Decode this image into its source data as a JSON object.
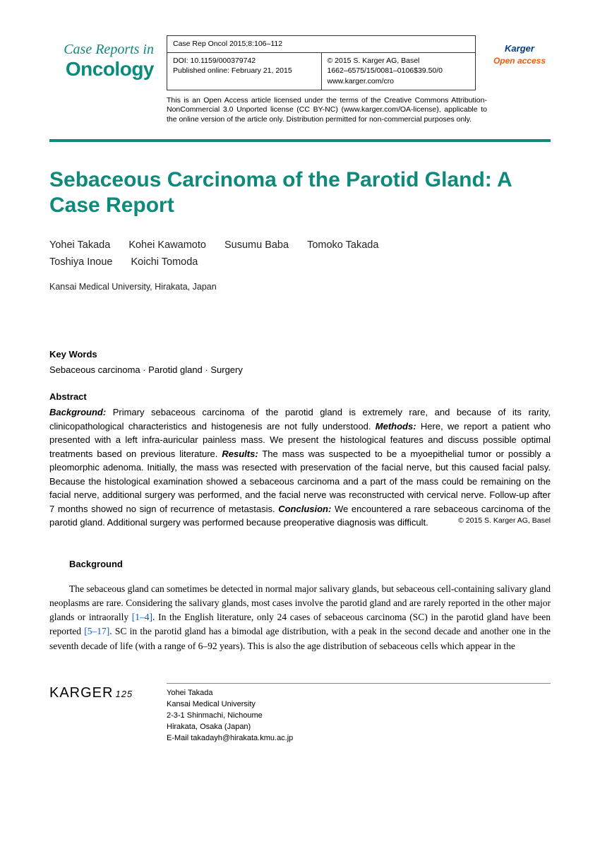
{
  "journal": {
    "name_line1": "Case Reports in",
    "name_line2": "Oncology",
    "citation": "Case Rep Oncol 2015;8:106–112",
    "doi": "DOI: 10.1159/000379742",
    "published": "Published online: February 21, 2015",
    "copyright": "© 2015 S. Karger AG, Basel",
    "issn_price": "1662–6575/15/0081–0106$39.50/0",
    "url": "www.karger.com/cro",
    "badge_publisher": "Karger",
    "badge_oa": "Open access",
    "license_note": "This is an Open Access article licensed under the terms of the Creative Commons Attribution-NonCommercial 3.0 Unported license (CC BY-NC) (www.karger.com/OA-license), applicable to the online version of the article only. Distribution permitted for non-commercial purposes only."
  },
  "article": {
    "title": "Sebaceous Carcinoma of the Parotid Gland: A Case Report",
    "authors": [
      "Yohei Takada",
      "Kohei Kawamoto",
      "Susumu Baba",
      "Tomoko Takada",
      "Toshiya Inoue",
      "Koichi Tomoda"
    ],
    "affiliation": "Kansai Medical University, Hirakata, Japan",
    "keywords_label": "Key Words",
    "keywords": "Sebaceous carcinoma · Parotid gland · Surgery",
    "abstract_label": "Abstract",
    "abstract": {
      "background_label": "Background:",
      "background": " Primary sebaceous carcinoma of the parotid gland is extremely rare, and because of its rarity, clinicopathological characteristics and histogenesis are not fully understood. ",
      "methods_label": "Methods:",
      "methods": " Here, we report a patient who presented with a left infra-auricular painless mass. We present the histological features and discuss possible optimal treatments based on previous literature. ",
      "results_label": "Results:",
      "results": " The mass was suspected to be a myoepithelial tumor or possibly a pleomorphic adenoma. Initially, the mass was resected with preservation of the facial nerve, but this caused facial palsy. Because the histological examination showed a sebaceous carcinoma and a part of the mass could be remaining on the facial nerve, additional surgery was performed, and the facial nerve was reconstructed with cervical nerve. Follow-up after 7 months showed no sign of recurrence of metastasis. ",
      "conclusion_label": "Conclusion:",
      "conclusion": " We encountered a rare sebaceous carcinoma of the parotid gland. Additional surgery was performed because preoperative diagnosis was difficult.",
      "copyright_inline": "© 2015 S. Karger AG, Basel"
    },
    "body": {
      "heading": "Background",
      "para1_a": "The sebaceous gland can sometimes be detected in normal major salivary glands, but sebaceous cell-containing salivary gland neoplasms are rare. Considering the salivary glands, most cases involve the parotid gland and are rarely reported in the other major glands or intraorally ",
      "ref1": "[1–4]",
      "para1_b": ". In the English literature, only 24 cases of sebaceous carcinoma (SC) in the parotid gland have been reported ",
      "ref2": "[5–17]",
      "para1_c": ". SC in the parotid gland has a bimodal age distribution, with a peak in the second decade and another one in the seventh decade of life (with a range of 6–92 years). This is also the age distribution of sebaceous cells which appear in the"
    }
  },
  "footer": {
    "publisher": "KARGER",
    "anniversary": "125",
    "contact": {
      "name": "Yohei Takada",
      "inst": "Kansai Medical University",
      "addr1": "2-3-1 Shinmachi, Nichoume",
      "addr2": "Hirakata, Osaka (Japan)",
      "email": "E-Mail takadayh@hirakata.kmu.ac.jp"
    }
  },
  "colors": {
    "accent": "#0c8a7a",
    "link": "#0b57d0",
    "oa_orange": "#e85d0e",
    "karger_blue": "#003a8c"
  }
}
